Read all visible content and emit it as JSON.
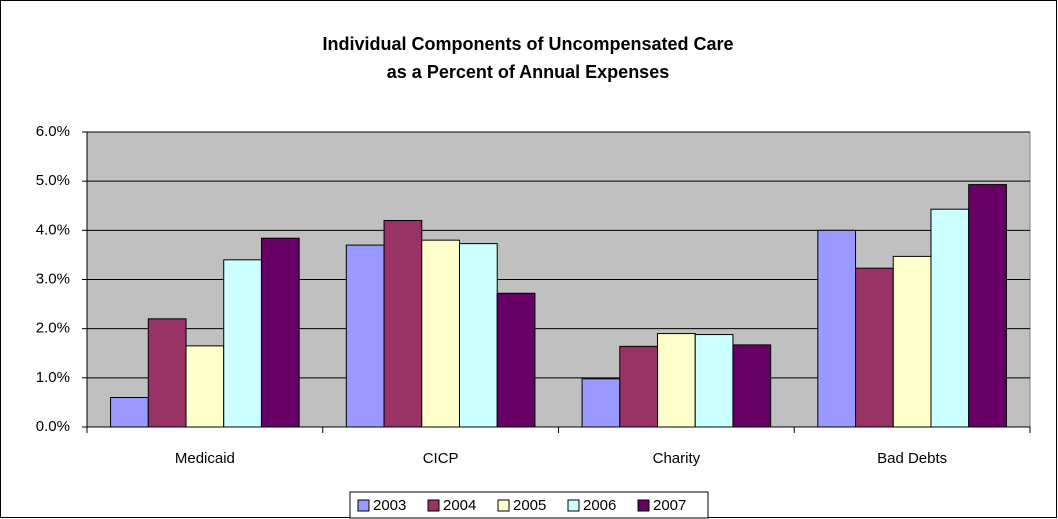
{
  "chart_data": {
    "type": "bar",
    "title": [
      "Individual Components of Uncompensated Care",
      "as a Percent of Annual Expenses"
    ],
    "categories": [
      "Medicaid",
      "CICP",
      "Charity",
      "Bad Debts"
    ],
    "series": [
      {
        "name": "2003",
        "color": "#9999FF",
        "values": [
          0.6,
          3.7,
          0.98,
          4.0
        ]
      },
      {
        "name": "2004",
        "color": "#993366",
        "values": [
          2.2,
          4.2,
          1.64,
          3.23
        ]
      },
      {
        "name": "2005",
        "color": "#FFFFCC",
        "values": [
          1.65,
          3.8,
          1.9,
          3.47
        ]
      },
      {
        "name": "2006",
        "color": "#CCFFFF",
        "values": [
          3.4,
          3.73,
          1.88,
          4.43
        ]
      },
      {
        "name": "2007",
        "color": "#660066",
        "values": [
          3.84,
          2.72,
          1.67,
          4.93
        ]
      }
    ],
    "ylim": [
      0,
      6
    ],
    "yticks": [
      {
        "value": 0,
        "label": "0.0%"
      },
      {
        "value": 1,
        "label": "1.0%"
      },
      {
        "value": 2,
        "label": "2.0%"
      },
      {
        "value": 3,
        "label": "3.0%"
      },
      {
        "value": 4,
        "label": "4.0%"
      },
      {
        "value": 5,
        "label": "5.0%"
      },
      {
        "value": 6,
        "label": "6.0%"
      }
    ],
    "grid": true,
    "legend": "bottom"
  }
}
